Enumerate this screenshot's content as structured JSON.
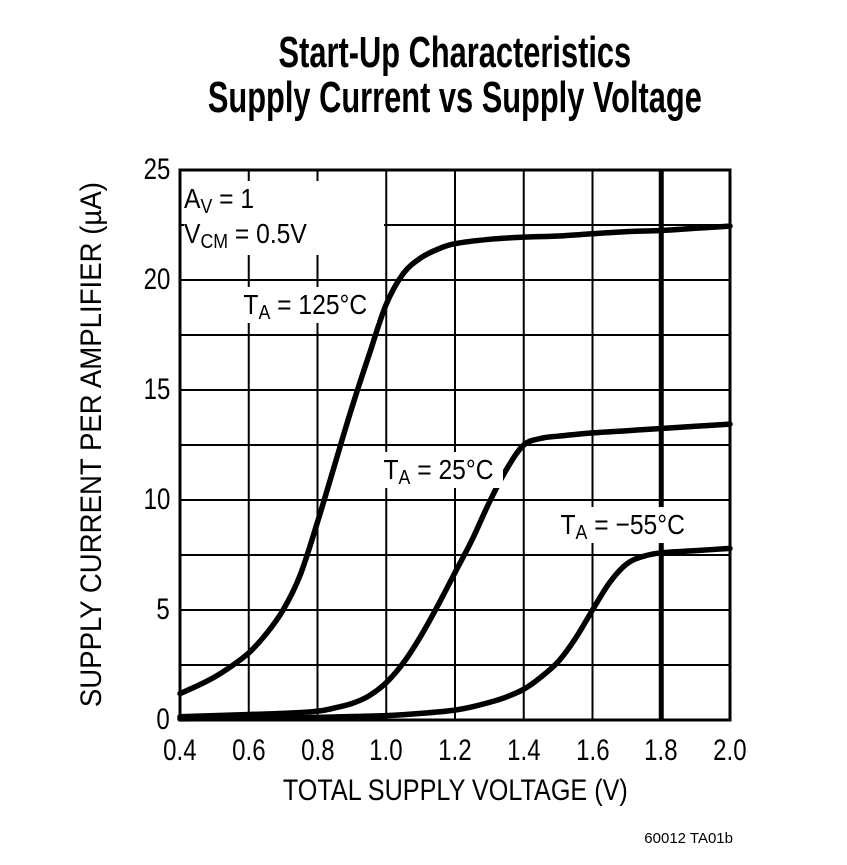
{
  "title": {
    "line1": "Start-Up Characteristics",
    "line2": "Supply Current vs Supply Voltage"
  },
  "axes": {
    "x": {
      "label": "TOTAL SUPPLY VOLTAGE (V)",
      "ticks": [
        "0.4",
        "0.6",
        "0.8",
        "1.0",
        "1.2",
        "1.4",
        "1.6",
        "1.8",
        "2.0"
      ]
    },
    "y": {
      "label": "SUPPLY CURRENT PER AMPLIFIER (µA)",
      "ticks": [
        "25",
        "20",
        "15",
        "10",
        "5",
        "0"
      ]
    }
  },
  "annotations": {
    "av": {
      "base": "A",
      "sub": "V",
      "rest": " = 1"
    },
    "vcm": {
      "base": "V",
      "sub": "CM",
      "rest": " = 0.5V"
    }
  },
  "curve_labels": {
    "t125": {
      "base": "T",
      "sub": "A",
      "rest": " = 125°C"
    },
    "t25": {
      "base": "T",
      "sub": "A",
      "rest": " = 25°C"
    },
    "t55": {
      "base": "T",
      "sub": "A",
      "rest": " = −55°C"
    }
  },
  "footer": {
    "note": "60012 TA01b"
  },
  "colors": {
    "line": "#000000",
    "grid": "#000000",
    "background": "#ffffff"
  },
  "chart_data": {
    "type": "line",
    "title": "Start-Up Characteristics — Supply Current vs Supply Voltage",
    "xlabel": "TOTAL SUPPLY VOLTAGE (V)",
    "ylabel": "SUPPLY CURRENT PER AMPLIFIER (µA)",
    "xlim": [
      0.4,
      2.0
    ],
    "ylim": [
      0,
      25
    ],
    "x_tick_step": 0.2,
    "y_tick_label_step": 5,
    "grid_x_step": 0.2,
    "grid_y_step": 2.5,
    "grid": true,
    "legend_position": "inline-curve-labels",
    "conditions": [
      "AV = 1",
      "VCM = 0.5V"
    ],
    "reference_line_x": 1.8,
    "series": [
      {
        "name": "TA = 125°C",
        "points": [
          [
            0.4,
            1.2
          ],
          [
            0.45,
            1.55
          ],
          [
            0.5,
            1.95
          ],
          [
            0.55,
            2.45
          ],
          [
            0.6,
            3.05
          ],
          [
            0.65,
            3.9
          ],
          [
            0.7,
            5.0
          ],
          [
            0.75,
            6.6
          ],
          [
            0.8,
            9.0
          ],
          [
            0.85,
            11.6
          ],
          [
            0.9,
            14.2
          ],
          [
            0.95,
            16.6
          ],
          [
            1.0,
            18.9
          ],
          [
            1.05,
            20.3
          ],
          [
            1.1,
            21.0
          ],
          [
            1.15,
            21.4
          ],
          [
            1.2,
            21.65
          ],
          [
            1.3,
            21.85
          ],
          [
            1.4,
            21.95
          ],
          [
            1.5,
            22.0
          ],
          [
            1.6,
            22.1
          ],
          [
            1.7,
            22.2
          ],
          [
            1.8,
            22.25
          ],
          [
            1.9,
            22.35
          ],
          [
            2.0,
            22.45
          ]
        ]
      },
      {
        "name": "TA = 25°C",
        "points": [
          [
            0.4,
            0.15
          ],
          [
            0.5,
            0.2
          ],
          [
            0.6,
            0.25
          ],
          [
            0.7,
            0.3
          ],
          [
            0.8,
            0.4
          ],
          [
            0.85,
            0.55
          ],
          [
            0.9,
            0.75
          ],
          [
            0.95,
            1.1
          ],
          [
            1.0,
            1.7
          ],
          [
            1.05,
            2.6
          ],
          [
            1.1,
            3.8
          ],
          [
            1.15,
            5.2
          ],
          [
            1.2,
            6.7
          ],
          [
            1.25,
            8.2
          ],
          [
            1.3,
            9.9
          ],
          [
            1.35,
            11.4
          ],
          [
            1.4,
            12.5
          ],
          [
            1.45,
            12.8
          ],
          [
            1.5,
            12.9
          ],
          [
            1.6,
            13.05
          ],
          [
            1.7,
            13.15
          ],
          [
            1.8,
            13.25
          ],
          [
            1.9,
            13.35
          ],
          [
            2.0,
            13.45
          ]
        ]
      },
      {
        "name": "TA = −55°C",
        "points": [
          [
            0.4,
            0.05
          ],
          [
            0.6,
            0.08
          ],
          [
            0.8,
            0.12
          ],
          [
            0.9,
            0.16
          ],
          [
            1.0,
            0.2
          ],
          [
            1.1,
            0.3
          ],
          [
            1.2,
            0.45
          ],
          [
            1.25,
            0.6
          ],
          [
            1.3,
            0.8
          ],
          [
            1.35,
            1.05
          ],
          [
            1.4,
            1.4
          ],
          [
            1.45,
            1.95
          ],
          [
            1.5,
            2.65
          ],
          [
            1.55,
            3.7
          ],
          [
            1.6,
            5.0
          ],
          [
            1.65,
            6.25
          ],
          [
            1.7,
            7.1
          ],
          [
            1.75,
            7.45
          ],
          [
            1.8,
            7.6
          ],
          [
            1.9,
            7.7
          ],
          [
            2.0,
            7.8
          ]
        ]
      }
    ]
  }
}
